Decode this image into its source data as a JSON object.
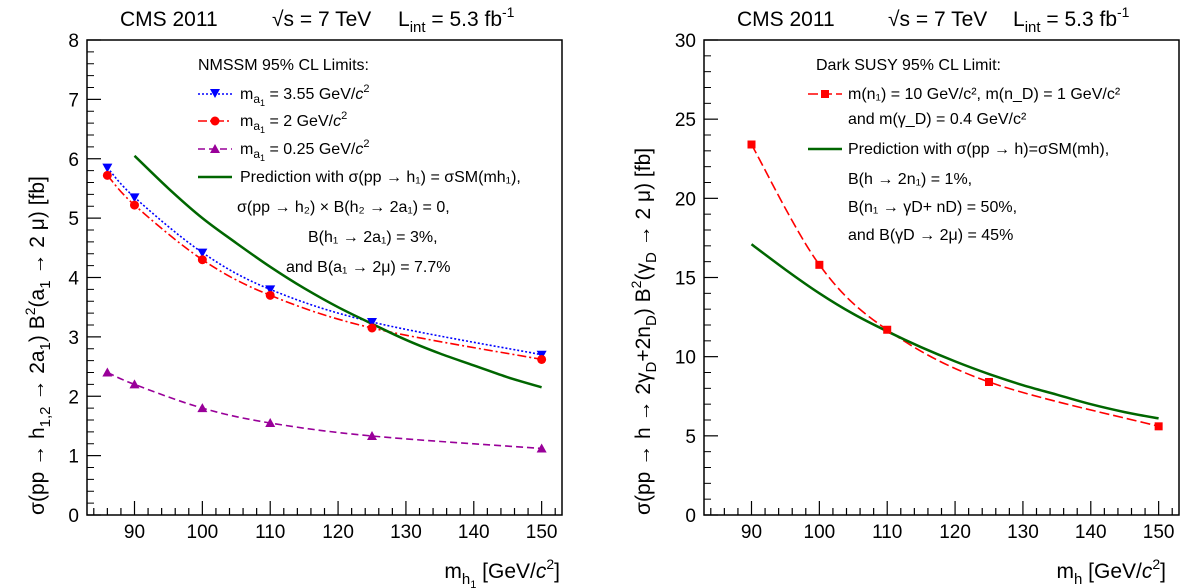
{
  "chart_data": [
    {
      "type": "line",
      "header": {
        "experiment": "CMS 2011",
        "sqrt_s": "√s = 7 TeV",
        "lumi_main": "L",
        "lumi_sub": "int",
        "lumi_value": " = 5.3 fb",
        "lumi_exp": "-1"
      },
      "ylabel": {
        "p1": "σ(pp → h",
        "p1_sub": "1,2",
        "p2": " → 2a",
        "p2_sub": "1",
        "p3": ") B",
        "p3_sup": "2",
        "p4": "(a",
        "p4_sub": "1",
        "p5": " → 2 μ) [fb]"
      },
      "xlabel": {
        "main": "m",
        "sub": "h",
        "subsub": "1",
        "unit": " [GeV/",
        "c": "c",
        "c_exp": "2",
        "close": "]"
      },
      "xlim": [
        83,
        153
      ],
      "ylim": [
        0,
        8
      ],
      "xticks": [
        90,
        100,
        110,
        120,
        130,
        140,
        150
      ],
      "yticks": [
        0,
        1,
        2,
        3,
        4,
        5,
        6,
        7,
        8
      ],
      "xtick_labels": [
        "90",
        "100",
        "110",
        "120",
        "130",
        "140",
        "150"
      ],
      "ytick_labels": [
        "0",
        "1",
        "2",
        "3",
        "4",
        "5",
        "6",
        "7",
        "8"
      ],
      "legend_position": "top-right",
      "legend": {
        "title": "NMSSM 95% CL Limits:",
        "entries": [
          {
            "pre": "m",
            "sub": "a",
            "subsub": "1",
            "post": " = 3.55 GeV/",
            "c": "c",
            "c_exp": "2"
          },
          {
            "pre": "m",
            "sub": "a",
            "subsub": "1",
            "post": " = 2 GeV/",
            "c": "c",
            "c_exp": "2"
          },
          {
            "pre": "m",
            "sub": "a",
            "subsub": "1",
            "post": " = 0.25 GeV/",
            "c": "c",
            "c_exp": "2"
          }
        ],
        "prediction_lines": [
          "Prediction with σ(pp → h₁) = σSM(mh₁),",
          "σ(pp → h₂) × B(h₂ → 2a₁) = 0,",
          "B(h₁ → 2a₁) = 3%,",
          "and B(a₁ → 2μ) = 7.7%"
        ]
      },
      "series": [
        {
          "name": "m_a1 = 3.55 GeV/c^2",
          "color": "#0000ff",
          "marker": "triangle-down",
          "style": "dotted",
          "x": [
            86,
            90,
            100,
            110,
            125,
            150
          ],
          "y": [
            5.85,
            5.35,
            4.42,
            3.8,
            3.25,
            2.7
          ]
        },
        {
          "name": "m_a1 = 2 GeV/c^2",
          "color": "#ff0000",
          "marker": "circle",
          "style": "dashdot",
          "x": [
            86,
            90,
            100,
            110,
            125,
            150
          ],
          "y": [
            5.72,
            5.22,
            4.3,
            3.7,
            3.15,
            2.62
          ]
        },
        {
          "name": "m_a1 = 0.25 GeV/c^2",
          "color": "#990099",
          "marker": "triangle-up",
          "style": "dashed",
          "x": [
            86,
            90,
            100,
            110,
            125,
            150
          ],
          "y": [
            2.4,
            2.2,
            1.8,
            1.55,
            1.33,
            1.12
          ]
        },
        {
          "name": "Prediction",
          "color": "#006600",
          "marker": "none",
          "style": "solid",
          "x": [
            90,
            95,
            100,
            105,
            110,
            115,
            120,
            125,
            130,
            135,
            140,
            145,
            150
          ],
          "y": [
            6.05,
            5.5,
            5.0,
            4.58,
            4.18,
            3.82,
            3.5,
            3.22,
            2.95,
            2.72,
            2.52,
            2.32,
            2.15
          ]
        }
      ]
    },
    {
      "type": "line",
      "header": {
        "experiment": "CMS 2011",
        "sqrt_s": "√s = 7 TeV",
        "lumi_main": "L",
        "lumi_sub": "int",
        "lumi_value": " = 5.3 fb",
        "lumi_exp": "-1"
      },
      "ylabel": {
        "p1": "σ(pp → h → 2γ",
        "p1_sub": "D",
        "p2": "+2n",
        "p2_sub": "D",
        "p3": ") B",
        "p3_sup": "2",
        "p4": "(γ",
        "p4_sub": "D",
        "p5": " → 2 μ) [fb]"
      },
      "xlabel": {
        "main": "m",
        "sub": "h",
        "subsub": "",
        "unit": " [GeV/",
        "c": "c",
        "c_exp": "2",
        "close": "]"
      },
      "xlim": [
        83,
        153
      ],
      "ylim": [
        0,
        30
      ],
      "xticks": [
        90,
        100,
        110,
        120,
        130,
        140,
        150
      ],
      "yticks": [
        0,
        5,
        10,
        15,
        20,
        25,
        30
      ],
      "xtick_labels": [
        "90",
        "100",
        "110",
        "120",
        "130",
        "140",
        "150"
      ],
      "ytick_labels": [
        "0",
        "5",
        "10",
        "15",
        "20",
        "25",
        "30"
      ],
      "legend_position": "top-right",
      "legend": {
        "title": "Dark SUSY 95% CL Limit:",
        "entries": [
          {
            "text": "m(n₁) = 10 GeV/c², m(n_D) = 1 GeV/c²"
          },
          {
            "text": "and m(γ_D) = 0.4 GeV/c²"
          }
        ],
        "prediction_lines": [
          "Prediction with σ(pp → h)=σSM(mh),",
          "B(h → 2n₁) = 1%,",
          "B(n₁ → γD+ nD) = 50%,",
          "and B(γD → 2μ) = 45%"
        ]
      },
      "series": [
        {
          "name": "Dark SUSY limit",
          "color": "#ff0000",
          "marker": "square",
          "style": "longdash",
          "x": [
            90,
            100,
            110,
            125,
            150
          ],
          "y": [
            23.4,
            15.8,
            11.7,
            8.4,
            5.6
          ]
        },
        {
          "name": "Prediction",
          "color": "#006600",
          "marker": "none",
          "style": "solid",
          "x": [
            90,
            95,
            100,
            105,
            110,
            115,
            120,
            125,
            130,
            135,
            140,
            145,
            150
          ],
          "y": [
            17.1,
            15.5,
            14.0,
            12.7,
            11.6,
            10.6,
            9.7,
            8.9,
            8.2,
            7.6,
            7.0,
            6.5,
            6.1
          ]
        }
      ]
    }
  ]
}
